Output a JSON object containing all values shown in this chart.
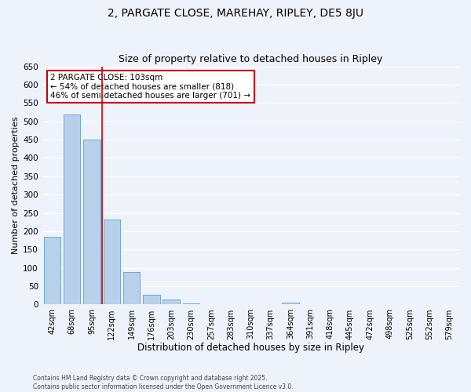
{
  "title": "2, PARGATE CLOSE, MAREHAY, RIPLEY, DE5 8JU",
  "subtitle": "Size of property relative to detached houses in Ripley",
  "xlabel": "Distribution of detached houses by size in Ripley",
  "ylabel": "Number of detached properties",
  "bar_labels": [
    "42sqm",
    "68sqm",
    "95sqm",
    "122sqm",
    "149sqm",
    "176sqm",
    "203sqm",
    "230sqm",
    "257sqm",
    "283sqm",
    "310sqm",
    "337sqm",
    "364sqm",
    "391sqm",
    "418sqm",
    "445sqm",
    "472sqm",
    "498sqm",
    "525sqm",
    "552sqm",
    "579sqm"
  ],
  "bar_values": [
    186,
    519,
    450,
    232,
    88,
    27,
    13,
    4,
    1,
    0,
    0,
    0,
    5,
    0,
    0,
    0,
    0,
    0,
    0,
    0,
    1
  ],
  "bar_color": "#b8d0ea",
  "bar_edge_color": "#6aaad4",
  "ylim": [
    0,
    650
  ],
  "yticks": [
    0,
    50,
    100,
    150,
    200,
    250,
    300,
    350,
    400,
    450,
    500,
    550,
    600,
    650
  ],
  "vline_x_index": 2,
  "vline_color": "#cc0000",
  "annotation_title": "2 PARGATE CLOSE: 103sqm",
  "annotation_line1": "← 54% of detached houses are smaller (818)",
  "annotation_line2": "46% of semi-detached houses are larger (701) →",
  "annotation_box_color": "#cc0000",
  "footer_line1": "Contains HM Land Registry data © Crown copyright and database right 2025.",
  "footer_line2": "Contains public sector information licensed under the Open Government Licence v3.0.",
  "bg_color": "#eef2fa",
  "grid_color": "#ffffff",
  "title_fontsize": 10,
  "subtitle_fontsize": 9
}
